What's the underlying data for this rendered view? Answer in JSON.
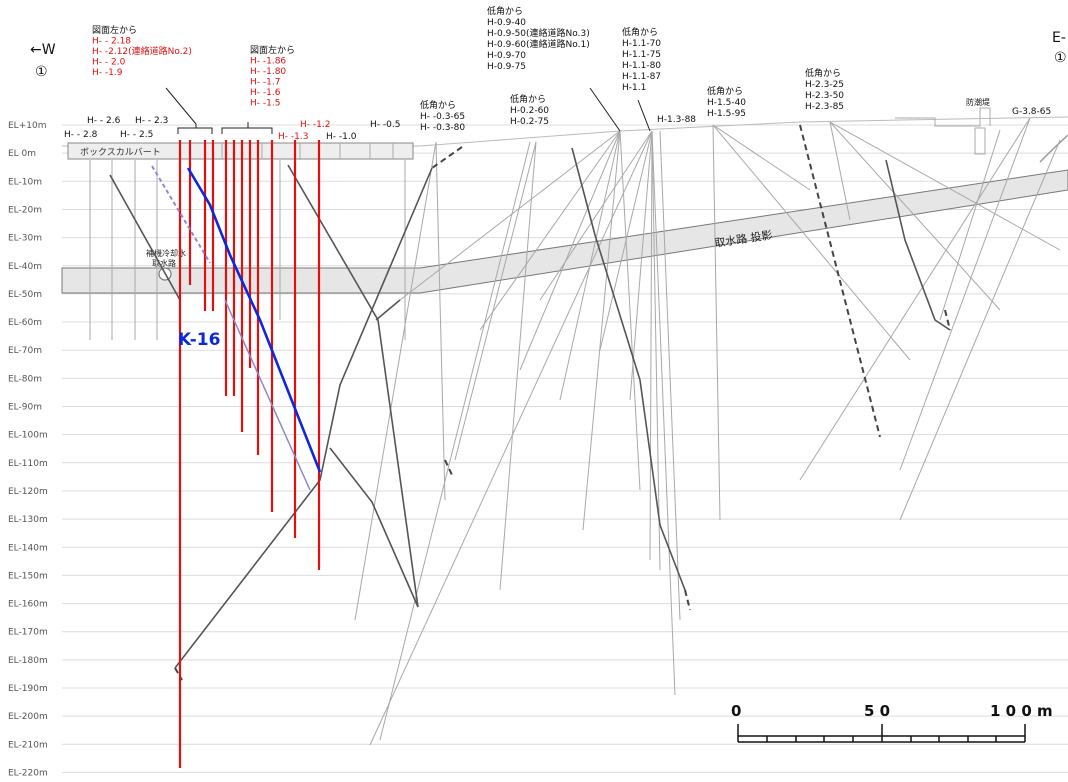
{
  "direction": {
    "west": "←W",
    "east": "E-",
    "west_marker": "①",
    "east_marker": "①"
  },
  "elevation_labels": [
    "EL+10m",
    "EL 0m",
    "EL-10m",
    "EL-20m",
    "EL-30m",
    "EL-40m",
    "EL-50m",
    "EL-60m",
    "EL-70m",
    "EL-80m",
    "EL-90m",
    "EL-100m",
    "EL-110m",
    "EL-120m",
    "EL-130m",
    "EL-140m",
    "EL-150m",
    "EL-160m",
    "EL-170m",
    "EL-180m",
    "EL-190m",
    "EL-200m",
    "EL-210m",
    "EL-220m"
  ],
  "structures": {
    "box_culvert": "ボックスカルバート",
    "cooling_channel_line1": "補機冷却水",
    "cooling_channel_line2": "取水路",
    "intake_projection": "取水路 投影",
    "seawall": "防潮堤"
  },
  "borehole_label": "K-16",
  "group_left": {
    "heading": "図面左から",
    "items": [
      "H- - 2.18",
      "H- -2.12(連絡道路No.2)",
      "H- - 2.0",
      "H- -1.9"
    ]
  },
  "group_mid": {
    "heading": "図面左から",
    "items": [
      "H- -1.86",
      "H- -1.80",
      "H- -1.7",
      "H- -1.6",
      "H- -1.5"
    ]
  },
  "top_labels": {
    "h26": "H- - 2.6",
    "h23": "H- - 2.3",
    "h28": "H- - 2.8",
    "h25": "H- - 2.5",
    "h12": "H- -1.2",
    "h13": "H- -1.3",
    "h10": "H- -1.0",
    "h05": "H- -0.5"
  },
  "group_03": {
    "heading": "低角から",
    "items": [
      "H- -0.3-65",
      "H- -0.3-80"
    ]
  },
  "group_02": {
    "heading": "低角から",
    "items": [
      "H-0.2-60",
      "H-0.2-75"
    ]
  },
  "group_09": {
    "heading": "低角から",
    "items": [
      "H-0.9-40",
      "H-0.9-50(連絡道路No.3)",
      "H-0.9-60(連絡道路No.1)",
      "H-0.9-70",
      "H-0.9-75"
    ]
  },
  "group_11": {
    "heading": "低角から",
    "items": [
      "H-1.1-70",
      "H-1.1-75",
      "H-1.1-80",
      "H-1.1-87",
      "H-1.1"
    ]
  },
  "label_h13_88": "H-1.3-88",
  "group_15": {
    "heading": "低角から",
    "items": [
      "H-1.5-40",
      "H-1.5-95"
    ]
  },
  "group_23": {
    "heading": "低角から",
    "items": [
      "H-2.3-25",
      "H-2.3-50",
      "H-2.3-85"
    ]
  },
  "label_g38": "G-3.8-65",
  "scale_bar": {
    "labels": [
      "0",
      "5 0",
      "1 0 0 m"
    ]
  }
}
